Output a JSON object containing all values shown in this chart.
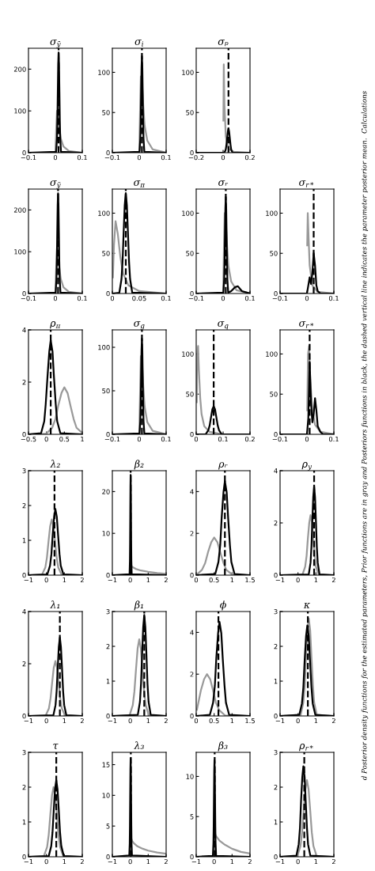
{
  "chart_data": [
    {
      "type": "line",
      "title": "σ$_{ȳ}$",
      "xlim": [
        -0.1,
        0.1
      ],
      "xticks": [
        -0.1,
        0,
        0.1
      ],
      "ylim": [
        0,
        250
      ],
      "yticks": [
        0,
        100,
        200
      ],
      "series": [
        {
          "color": "#999999",
          "x": [
            0,
            0.003,
            0.006,
            0.01,
            0.015,
            0.02,
            0.03,
            0.05,
            0.1
          ],
          "values": [
            0,
            55,
            100,
            90,
            58,
            34,
            15,
            4,
            0
          ]
        },
        {
          "color": "#000000",
          "x": [
            -0.1,
            0.003,
            0.006,
            0.0075,
            0.009,
            0.0105,
            0.012,
            0.0135,
            0.015,
            0.0165,
            0.018,
            0.021,
            0.1
          ],
          "values": [
            0,
            2,
            34,
            77,
            146,
            211,
            240,
            211,
            146,
            77,
            34,
            2,
            0
          ]
        }
      ],
      "ref_lines": [
        {
          "axis": "x",
          "value": 0.012,
          "line_style": "dashed"
        }
      ]
    },
    {
      "type": "line",
      "title": "σ$_{i}$",
      "xlim": [
        -0.1,
        0.1
      ],
      "xticks": [
        -0.1,
        0,
        0.1
      ],
      "ylim": [
        0,
        130
      ],
      "yticks": [
        0,
        50,
        100
      ],
      "series": [
        {
          "color": "#999999",
          "x": [
            0,
            0.003,
            0.006,
            0.01,
            0.015,
            0.02,
            0.03,
            0.05,
            0.1
          ],
          "values": [
            0,
            50,
            95,
            90,
            58,
            34,
            15,
            4,
            0
          ]
        },
        {
          "color": "#000000",
          "x": [
            -0.1,
            0.001,
            0.004,
            0.0055,
            0.007,
            0.0085,
            0.01,
            0.0115,
            0.013,
            0.0145,
            0.016,
            0.019,
            0.1
          ],
          "values": [
            0,
            1,
            17,
            38,
            73,
            106,
            120,
            106,
            73,
            38,
            17,
            1,
            0
          ]
        }
      ],
      "ref_lines": [
        {
          "axis": "x",
          "value": 0.01,
          "line_style": "dashed"
        }
      ]
    },
    {
      "type": "line",
      "title": "σₚ",
      "xlim": [
        -0.2,
        0.2
      ],
      "xticks": [
        -0.2,
        0,
        0.2
      ],
      "ylim": [
        0,
        130
      ],
      "yticks": [
        0,
        50,
        100
      ],
      "series": [
        {
          "color": "#999999",
          "x": [
            0.002,
            0.005,
            0.01,
            0.02,
            0.04,
            0.08,
            0.2
          ],
          "values": [
            40,
            110,
            60,
            20,
            5,
            1,
            0
          ]
        },
        {
          "color": "#000000",
          "x": [
            -0.2,
            0.01,
            0.02,
            0.025,
            0.03,
            0.035,
            0.04,
            0.045,
            0.05,
            0.055,
            0.06,
            0.07,
            0.2
          ],
          "values": [
            0,
            0,
            4,
            10,
            18,
            26,
            30,
            26,
            18,
            10,
            4,
            0,
            0
          ]
        }
      ],
      "ref_lines": [
        {
          "axis": "x",
          "value": 0.04,
          "line_style": "dashed"
        }
      ]
    },
    {
      "type": "line",
      "title": "σ$_{ỹ}$",
      "xlim": [
        -0.1,
        0.1
      ],
      "xticks": [
        -0.1,
        0,
        0.1
      ],
      "ylim": [
        0,
        250
      ],
      "yticks": [
        0,
        100,
        200
      ],
      "series": [
        {
          "color": "#999999",
          "x": [
            0,
            0.003,
            0.006,
            0.01,
            0.015,
            0.02,
            0.03,
            0.05,
            0.1
          ],
          "values": [
            0,
            60,
            110,
            95,
            60,
            35,
            15,
            4,
            0
          ]
        },
        {
          "color": "#000000",
          "x": [
            -0.1,
            0.001,
            0.004,
            0.0055,
            0.007,
            0.0085,
            0.01,
            0.0115,
            0.013,
            0.0145,
            0.016,
            0.019,
            0.1
          ],
          "values": [
            0,
            2,
            34,
            77,
            146,
            211,
            240,
            211,
            146,
            77,
            34,
            2,
            0
          ]
        }
      ],
      "ref_lines": [
        {
          "axis": "x",
          "value": 0.01,
          "line_style": "dashed"
        }
      ]
    },
    {
      "type": "line",
      "title": "σ$_{π}$",
      "xlim": [
        0,
        0.1
      ],
      "xticks": [
        0,
        0.05,
        0.1
      ],
      "ylim": [
        0,
        130
      ],
      "yticks": [
        0,
        50,
        100
      ],
      "series": [
        {
          "color": "#999999",
          "x": [
            0.001,
            0.003,
            0.006,
            0.01,
            0.015,
            0.02,
            0.03,
            0.05,
            0.1
          ],
          "values": [
            20,
            60,
            90,
            75,
            45,
            25,
            10,
            3,
            0
          ]
        },
        {
          "color": "#000000",
          "x": [
            0,
            0.013,
            0.017,
            0.019,
            0.021,
            0.023,
            0.025,
            0.027,
            0.029,
            0.031,
            0.033,
            0.037,
            0.1
          ],
          "values": [
            0,
            1,
            18,
            40,
            76,
            110,
            125,
            110,
            76,
            40,
            18,
            1,
            0
          ]
        }
      ],
      "ref_lines": [
        {
          "axis": "x",
          "value": 0.025,
          "line_style": "dashed"
        }
      ]
    },
    {
      "type": "line",
      "title": "σᵣ",
      "xlim": [
        -0.1,
        0.1
      ],
      "xticks": [
        -0.1,
        0,
        0.1
      ],
      "ylim": [
        0,
        130
      ],
      "yticks": [
        0,
        50,
        100
      ],
      "series": [
        {
          "color": "#999999",
          "x": [
            0,
            0.003,
            0.006,
            0.01,
            0.015,
            0.02,
            0.03,
            0.05,
            0.1
          ],
          "values": [
            0,
            55,
            100,
            90,
            58,
            34,
            15,
            4,
            0
          ]
        },
        {
          "color": "#000000",
          "x": [
            -0.1,
            0.001,
            0.004,
            0.0055,
            0.007,
            0.0085,
            0.01,
            0.0115,
            0.013,
            0.0145,
            0.016,
            0.019,
            0.03,
            0.045,
            0.055,
            0.07,
            0.1
          ],
          "values": [
            0,
            1,
            17,
            38,
            73,
            106,
            120,
            106,
            73,
            38,
            17,
            1,
            3,
            8,
            9,
            3,
            0
          ]
        }
      ],
      "ref_lines": [
        {
          "axis": "x",
          "value": 0.01,
          "line_style": "dashed"
        }
      ]
    },
    {
      "type": "line",
      "title": "σ$_{r*}$",
      "xlim": [
        -0.1,
        0.1
      ],
      "xticks": [
        -0.1,
        0,
        0.1
      ],
      "ylim": [
        0,
        130
      ],
      "yticks": [
        0,
        50,
        100
      ],
      "series": [
        {
          "color": "#999999",
          "x": [
            0.001,
            0.003,
            0.006,
            0.01,
            0.02,
            0.04,
            0.1
          ],
          "values": [
            60,
            100,
            70,
            35,
            10,
            2,
            0
          ]
        },
        {
          "color": "#000000",
          "x": [
            -0.1,
            0.0,
            0.005,
            0.01,
            0.015,
            0.02,
            0.025,
            0.03,
            0.035,
            0.04,
            0.05,
            0.1
          ],
          "values": [
            0,
            0,
            10,
            20,
            12,
            25,
            50,
            35,
            10,
            3,
            0,
            0
          ]
        }
      ],
      "ref_lines": [
        {
          "axis": "x",
          "value": 0.025,
          "line_style": "dashed"
        }
      ]
    },
    {
      "type": "line",
      "title": "ρ$_{π}$",
      "xlim": [
        -0.5,
        1
      ],
      "xticks": [
        -0.5,
        0,
        0.5,
        1
      ],
      "ylim": [
        0,
        4
      ],
      "yticks": [
        0,
        2,
        4
      ],
      "series": [
        {
          "color": "#999999",
          "x": [
            -0.5,
            -0.01,
            0.16,
            0.25,
            0.33,
            0.42,
            0.5,
            0.59,
            0.67,
            0.76,
            0.84,
            1.0
          ],
          "values": [
            0,
            0.02,
            0.25,
            0.58,
            1.1,
            1.58,
            1.8,
            1.58,
            1.1,
            0.58,
            0.25,
            0.05
          ]
        },
        {
          "color": "#000000",
          "x": [
            -0.5,
            -0.15,
            -0.06,
            -0.02,
            0.03,
            0.08,
            0.12,
            0.17,
            0.21,
            0.26,
            0.3,
            0.39,
            1
          ],
          "values": [
            0,
            0.04,
            0.5,
            1.15,
            2.2,
            3.17,
            3.6,
            3.17,
            2.2,
            1.15,
            0.5,
            0.04,
            0
          ]
        }
      ],
      "ref_lines": [
        {
          "axis": "x",
          "value": 0.12,
          "line_style": "dashed"
        }
      ]
    },
    {
      "type": "line",
      "title": "σ$_{g}$",
      "xlim": [
        -0.1,
        0.1
      ],
      "xticks": [
        -0.1,
        0,
        0.1
      ],
      "ylim": [
        0,
        120
      ],
      "yticks": [
        0,
        50,
        100
      ],
      "series": [
        {
          "color": "#999999",
          "x": [
            0,
            0.003,
            0.006,
            0.01,
            0.015,
            0.02,
            0.03,
            0.05,
            0.1
          ],
          "values": [
            0,
            45,
            90,
            85,
            55,
            32,
            14,
            4,
            0
          ]
        },
        {
          "color": "#000000",
          "x": [
            -0.1,
            0.001,
            0.004,
            0.0055,
            0.007,
            0.0085,
            0.01,
            0.0115,
            0.013,
            0.0145,
            0.016,
            0.019,
            0.1
          ],
          "values": [
            0,
            1,
            15,
            35,
            67,
            97,
            110,
            97,
            67,
            35,
            15,
            1,
            0
          ]
        }
      ],
      "ref_lines": [
        {
          "axis": "x",
          "value": 0.01,
          "line_style": "dashed"
        }
      ]
    },
    {
      "type": "line",
      "title": "σ$_{q}$",
      "xlim": [
        0,
        0.2
      ],
      "xticks": [
        0,
        0.1,
        0.2
      ],
      "ylim": [
        0,
        130
      ],
      "yticks": [
        0,
        50,
        100
      ],
      "series": [
        {
          "color": "#999999",
          "x": [
            0.002,
            0.004,
            0.007,
            0.01,
            0.015,
            0.02,
            0.03,
            0.05,
            0.1,
            0.2
          ],
          "values": [
            40,
            100,
            110,
            80,
            45,
            25,
            10,
            3,
            0,
            0
          ]
        },
        {
          "color": "#000000",
          "x": [
            0,
            0.035,
            0.045,
            0.05,
            0.055,
            0.06,
            0.065,
            0.07,
            0.075,
            0.08,
            0.085,
            0.095,
            0.2
          ],
          "values": [
            0,
            0,
            5,
            11,
            21,
            31,
            35,
            31,
            21,
            11,
            5,
            0,
            0
          ]
        }
      ],
      "ref_lines": [
        {
          "axis": "x",
          "value": 0.065,
          "line_style": "dashed"
        }
      ]
    },
    {
      "type": "line",
      "title": "σ$_{r*}$",
      "xlim": [
        -0.1,
        0.1
      ],
      "xticks": [
        -0.1,
        0,
        0.1
      ],
      "ylim": [
        0,
        130
      ],
      "yticks": [
        0,
        50,
        100
      ],
      "series": [
        {
          "color": "#999999",
          "x": [
            0.001,
            0.004,
            0.008,
            0.012,
            0.02,
            0.03,
            0.05,
            0.1
          ],
          "values": [
            30,
            100,
            110,
            70,
            30,
            12,
            3,
            0
          ]
        },
        {
          "color": "#000000",
          "x": [
            -0.1,
            0.0,
            0.005,
            0.01,
            0.015,
            0.02,
            0.025,
            0.03,
            0.035,
            0.04,
            0.05,
            0.06,
            0.1
          ],
          "values": [
            0,
            0,
            20,
            90,
            40,
            15,
            25,
            45,
            30,
            10,
            3,
            0,
            0
          ]
        }
      ],
      "ref_lines": [
        {
          "axis": "x",
          "value": 0.01,
          "line_style": "dashed"
        }
      ]
    },
    {
      "type": "line",
      "title": "λ₂",
      "xlim": [
        -1,
        2
      ],
      "xticks": [
        -1,
        0,
        1,
        2
      ],
      "ylim": [
        0,
        3
      ],
      "yticks": [
        0,
        1,
        2,
        3
      ],
      "series": [
        {
          "color": "#999999",
          "x": [
            -1,
            -0.24,
            -0.06,
            0.03,
            0.12,
            0.21,
            0.3,
            0.39,
            0.48,
            0.57,
            0.66,
            0.84,
            2
          ],
          "values": [
            0,
            0.02,
            0.22,
            0.51,
            0.98,
            1.41,
            1.6,
            1.41,
            0.98,
            0.51,
            0.22,
            0.02,
            0
          ]
        },
        {
          "color": "#000000",
          "x": [
            -1,
            0.05,
            0.2,
            0.28,
            0.35,
            0.43,
            0.5,
            0.58,
            0.65,
            0.73,
            0.8,
            0.95,
            2
          ],
          "values": [
            0,
            0.02,
            0.27,
            0.61,
            1.16,
            1.67,
            1.9,
            1.67,
            1.16,
            0.61,
            0.27,
            0.02,
            0
          ]
        }
      ],
      "ref_lines": [
        {
          "axis": "x",
          "value": 0.45,
          "line_style": "dashed"
        }
      ]
    },
    {
      "type": "line",
      "title": "β₂",
      "xlim": [
        -1,
        2
      ],
      "xticks": [
        -1,
        0,
        1,
        2
      ],
      "ylim": [
        0,
        25
      ],
      "yticks": [
        0,
        10,
        20
      ],
      "series": [
        {
          "color": "#999999",
          "x": [
            0,
            0.02,
            0.1,
            0.3,
            0.6,
            1,
            1.5,
            2
          ],
          "values": [
            0,
            2.5,
            2,
            1.5,
            1.1,
            0.8,
            0.5,
            0.3
          ]
        },
        {
          "color": "#000000",
          "x": [
            -1,
            -0.04,
            -0.02,
            -0.01,
            0,
            0.01,
            0.02,
            0.03,
            0.04,
            0.05,
            0.06,
            0.08,
            2
          ],
          "values": [
            0,
            0.2,
            3.4,
            7.7,
            14.6,
            21.1,
            24,
            21.1,
            14.6,
            7.7,
            3.4,
            0.2,
            0
          ]
        }
      ],
      "ref_lines": [
        {
          "axis": "x",
          "value": 0.02,
          "line_style": "dashed"
        }
      ]
    },
    {
      "type": "line",
      "title": "ρᵣ",
      "xlim": [
        0,
        1.5
      ],
      "xticks": [
        0,
        0.5,
        1,
        1.5
      ],
      "ylim": [
        0,
        5
      ],
      "yticks": [
        0,
        2,
        4
      ],
      "series": [
        {
          "color": "#999999",
          "x": [
            0,
            0.16,
            0.25,
            0.33,
            0.42,
            0.5,
            0.59,
            0.67,
            0.76,
            0.84,
            1.01,
            1.5
          ],
          "values": [
            0,
            0.25,
            0.58,
            1.1,
            1.58,
            1.8,
            1.58,
            1.1,
            0.58,
            0.25,
            0.02,
            0
          ]
        },
        {
          "color": "#000000",
          "x": [
            0,
            0.53,
            0.62,
            0.67,
            0.71,
            0.76,
            0.8,
            0.85,
            0.89,
            0.94,
            0.98,
            1.07,
            1.5
          ],
          "values": [
            0,
            0.05,
            0.63,
            1.44,
            2.75,
            3.96,
            4.5,
            3.96,
            2.75,
            1.44,
            0.63,
            0.05,
            0
          ]
        }
      ],
      "ref_lines": [
        {
          "axis": "x",
          "value": 0.8,
          "line_style": "dashed"
        }
      ]
    },
    {
      "type": "line",
      "title": "ρ$_{y}$",
      "xlim": [
        -1,
        2
      ],
      "xticks": [
        -1,
        0,
        1,
        2
      ],
      "ylim": [
        0,
        4
      ],
      "yticks": [
        0,
        2,
        4
      ],
      "series": [
        {
          "color": "#999999",
          "x": [
            -1,
            0.25,
            0.4,
            0.48,
            0.55,
            0.63,
            0.7,
            0.78,
            0.85,
            0.93,
            1.0,
            1.15,
            2
          ],
          "values": [
            0,
            0.02,
            0.32,
            0.74,
            1.4,
            2.02,
            2.3,
            2.02,
            1.4,
            0.74,
            0.32,
            0.02,
            0
          ]
        },
        {
          "color": "#000000",
          "x": [
            -1,
            0.6,
            0.7,
            0.75,
            0.8,
            0.85,
            0.9,
            0.95,
            1.0,
            1.05,
            1.1,
            1.2,
            2
          ],
          "values": [
            0,
            0.03,
            0.48,
            1.09,
            2.07,
            2.99,
            3.4,
            2.99,
            2.07,
            1.09,
            0.48,
            0.03,
            0
          ]
        }
      ],
      "ref_lines": [
        {
          "axis": "x",
          "value": 0.9,
          "line_style": "dashed"
        }
      ]
    },
    {
      "type": "line",
      "title": "λ₁",
      "xlim": [
        -1,
        2
      ],
      "xticks": [
        -1,
        0,
        1,
        2
      ],
      "ylim": [
        0,
        4
      ],
      "yticks": [
        0,
        2,
        4
      ],
      "series": [
        {
          "color": "#999999",
          "x": [
            -1,
            -0.04,
            0.14,
            0.23,
            0.32,
            0.41,
            0.5,
            0.59,
            0.68,
            0.77,
            0.86,
            1.04,
            2
          ],
          "values": [
            0,
            0.02,
            0.29,
            0.67,
            1.28,
            1.85,
            2.1,
            1.85,
            1.28,
            0.67,
            0.29,
            0.02,
            0
          ]
        },
        {
          "color": "#000000",
          "x": [
            -1,
            0.39,
            0.51,
            0.57,
            0.63,
            0.69,
            0.75,
            0.81,
            0.87,
            0.93,
            0.99,
            1.11,
            2
          ],
          "values": [
            0,
            0.03,
            0.42,
            0.96,
            1.83,
            2.64,
            3.0,
            2.64,
            1.83,
            0.96,
            0.42,
            0.03,
            0
          ]
        }
      ],
      "ref_lines": [
        {
          "axis": "x",
          "value": 0.75,
          "line_style": "dashed"
        }
      ]
    },
    {
      "type": "line",
      "title": "β₁",
      "xlim": [
        -1,
        2
      ],
      "xticks": [
        -1,
        0,
        1,
        2
      ],
      "ylim": [
        0,
        3
      ],
      "yticks": [
        0,
        1,
        2,
        3
      ],
      "series": [
        {
          "color": "#999999",
          "x": [
            -1,
            -0.04,
            0.14,
            0.23,
            0.32,
            0.41,
            0.5,
            0.59,
            0.68,
            0.77,
            0.86,
            1.04,
            2
          ],
          "values": [
            0,
            0.02,
            0.31,
            0.7,
            1.34,
            1.94,
            2.2,
            1.94,
            1.34,
            0.7,
            0.31,
            0.02,
            0
          ]
        },
        {
          "color": "#000000",
          "x": [
            -1,
            0.42,
            0.54,
            0.6,
            0.66,
            0.72,
            0.78,
            0.84,
            0.9,
            0.96,
            1.02,
            1.14,
            2
          ],
          "values": [
            0,
            0.03,
            0.41,
            0.93,
            1.77,
            2.55,
            2.9,
            2.55,
            1.77,
            0.93,
            0.41,
            0.03,
            0
          ]
        }
      ],
      "ref_lines": [
        {
          "axis": "x",
          "value": 0.78,
          "line_style": "dashed"
        }
      ]
    },
    {
      "type": "line",
      "title": "ϕ",
      "xlim": [
        0,
        1.5
      ],
      "xticks": [
        0,
        0.5,
        1,
        1.5
      ],
      "ylim": [
        0,
        5
      ],
      "yticks": [
        0,
        2,
        4
      ],
      "series": [
        {
          "color": "#999999",
          "x": [
            0.02,
            0.13,
            0.22,
            0.3,
            0.39,
            0.47,
            0.55,
            0.64,
            0.81,
            1.5
          ],
          "values": [
            0.3,
            1.22,
            1.76,
            2.0,
            1.76,
            1.22,
            0.64,
            0.28,
            0.02,
            0
          ]
        },
        {
          "color": "#000000",
          "x": [
            0,
            0.38,
            0.47,
            0.52,
            0.56,
            0.61,
            0.65,
            0.7,
            0.74,
            0.79,
            0.83,
            0.92,
            1.5
          ],
          "values": [
            0,
            0.05,
            0.63,
            1.44,
            2.75,
            3.96,
            4.5,
            3.96,
            2.75,
            1.44,
            0.63,
            0.05,
            0
          ]
        }
      ],
      "ref_lines": [
        {
          "axis": "x",
          "value": 0.62,
          "line_style": "dashed"
        }
      ]
    },
    {
      "type": "line",
      "title": "κ",
      "xlim": [
        -1,
        2
      ],
      "xticks": [
        -1,
        0,
        1,
        2
      ],
      "ylim": [
        0,
        3
      ],
      "yticks": [
        0,
        1,
        2,
        3
      ],
      "series": [
        {
          "color": "#999999",
          "x": [
            -1,
            0.15,
            0.3,
            0.38,
            0.45,
            0.53,
            0.6,
            0.68,
            0.75,
            0.83,
            0.9,
            1.05,
            2
          ],
          "values": [
            0,
            0.03,
            0.39,
            0.9,
            1.71,
            2.46,
            2.8,
            2.46,
            1.71,
            0.9,
            0.39,
            0.03,
            0
          ]
        },
        {
          "color": "#000000",
          "x": [
            -1,
            0.07,
            0.22,
            0.3,
            0.37,
            0.45,
            0.52,
            0.6,
            0.67,
            0.75,
            0.82,
            0.97,
            2
          ],
          "values": [
            0,
            0.03,
            0.36,
            0.83,
            1.59,
            2.29,
            2.6,
            2.29,
            1.59,
            0.83,
            0.36,
            0.03,
            0
          ]
        }
      ],
      "ref_lines": [
        {
          "axis": "x",
          "value": 0.55,
          "line_style": "dashed"
        }
      ]
    },
    {
      "type": "line",
      "title": "τ",
      "xlim": [
        -1,
        2
      ],
      "xticks": [
        -1,
        0,
        1,
        2
      ],
      "ylim": [
        0,
        3
      ],
      "yticks": [
        0,
        1,
        2,
        3
      ],
      "series": [
        {
          "color": "#999999",
          "x": [
            -1,
            -0.14,
            0.04,
            0.13,
            0.22,
            0.31,
            0.4,
            0.49,
            0.58,
            0.67,
            0.76,
            0.94,
            2
          ],
          "values": [
            0,
            0.02,
            0.28,
            0.64,
            1.22,
            1.76,
            2.0,
            1.76,
            1.22,
            0.64,
            0.28,
            0.02,
            0
          ]
        },
        {
          "color": "#000000",
          "x": [
            -1,
            0.13,
            0.27,
            0.34,
            0.41,
            0.48,
            0.55,
            0.62,
            0.69,
            0.76,
            0.83,
            0.97,
            2
          ],
          "values": [
            0,
            0.02,
            0.31,
            0.7,
            1.34,
            1.94,
            2.2,
            1.94,
            1.34,
            0.7,
            0.31,
            0.02,
            0
          ]
        }
      ],
      "ref_lines": [
        {
          "axis": "x",
          "value": 0.55,
          "line_style": "dashed"
        }
      ]
    },
    {
      "type": "line",
      "title": "λ₃",
      "xlim": [
        -1,
        2
      ],
      "xticks": [
        -1,
        0,
        1,
        2
      ],
      "ylim": [
        0,
        17
      ],
      "yticks": [
        0,
        5,
        10,
        15
      ],
      "series": [
        {
          "color": "#999999",
          "x": [
            0,
            0.02,
            0.05,
            0.1,
            0.2,
            0.4,
            0.7,
            1.0,
            1.5,
            2
          ],
          "values": [
            0,
            3.5,
            3,
            2.6,
            2.2,
            1.7,
            1.3,
            1.0,
            0.7,
            0.5
          ]
        },
        {
          "color": "#000000",
          "x": [
            -1,
            -0.055,
            -0.03,
            -0.018,
            -0.005,
            0.008,
            0.02,
            0.033,
            0.045,
            0.058,
            0.07,
            0.095,
            2
          ],
          "values": [
            0,
            0.2,
            2.2,
            5.1,
            9.8,
            14.1,
            16,
            14.1,
            9.8,
            5.1,
            2.2,
            0.2,
            0
          ]
        }
      ],
      "ref_lines": [
        {
          "axis": "x",
          "value": 0.03,
          "line_style": "dashed"
        }
      ]
    },
    {
      "type": "line",
      "title": "β₃",
      "xlim": [
        -1,
        2
      ],
      "xticks": [
        -1,
        0,
        1,
        2
      ],
      "ylim": [
        0,
        13
      ],
      "yticks": [
        0,
        5,
        10
      ],
      "series": [
        {
          "color": "#999999",
          "x": [
            0,
            0.03,
            0.1,
            0.3,
            0.6,
            1,
            1.5,
            2
          ],
          "values": [
            0,
            3,
            2.6,
            2,
            1.5,
            1,
            0.6,
            0.4
          ]
        },
        {
          "color": "#000000",
          "x": [
            -1,
            -0.07,
            -0.04,
            -0.025,
            -0.01,
            0.005,
            0.02,
            0.035,
            0.05,
            0.065,
            0.08,
            0.11,
            2
          ],
          "values": [
            0,
            0.1,
            1.7,
            3.8,
            7.3,
            10.6,
            12,
            10.6,
            7.3,
            3.8,
            1.7,
            0.1,
            0
          ]
        }
      ],
      "ref_lines": [
        {
          "axis": "x",
          "value": 0.03,
          "line_style": "dashed"
        }
      ]
    },
    {
      "type": "line",
      "title": "ρ$_{r*}$",
      "xlim": [
        -1,
        2
      ],
      "xticks": [
        -1,
        0,
        1,
        2
      ],
      "ylim": [
        0,
        3
      ],
      "yticks": [
        0,
        1,
        2,
        3
      ],
      "series": [
        {
          "color": "#999999",
          "x": [
            -1,
            -0.04,
            0.14,
            0.23,
            0.32,
            0.41,
            0.5,
            0.59,
            0.68,
            0.77,
            0.86,
            1.04,
            2
          ],
          "values": [
            0,
            0.02,
            0.31,
            0.7,
            1.34,
            1.94,
            2.2,
            1.94,
            1.34,
            0.7,
            0.31,
            0.02,
            0
          ]
        },
        {
          "color": "#000000",
          "x": [
            -1,
            -0.09,
            0.04,
            0.11,
            0.17,
            0.24,
            0.3,
            0.37,
            0.43,
            0.5,
            0.56,
            0.69,
            2
          ],
          "values": [
            0,
            0.03,
            0.36,
            0.83,
            1.59,
            2.29,
            2.6,
            2.29,
            1.59,
            0.83,
            0.36,
            0.03,
            0
          ]
        }
      ],
      "ref_lines": [
        {
          "axis": "x",
          "value": 0.35,
          "line_style": "dashed"
        }
      ]
    },
    {
      "type": "other",
      "annotations": [
        "d Posterior density functions for the estimated parameters, Prior functions are in gray and Posteriors functions in black, the dashed vertical line indicates the parameter posterior mean.  Calculations"
      ]
    }
  ]
}
